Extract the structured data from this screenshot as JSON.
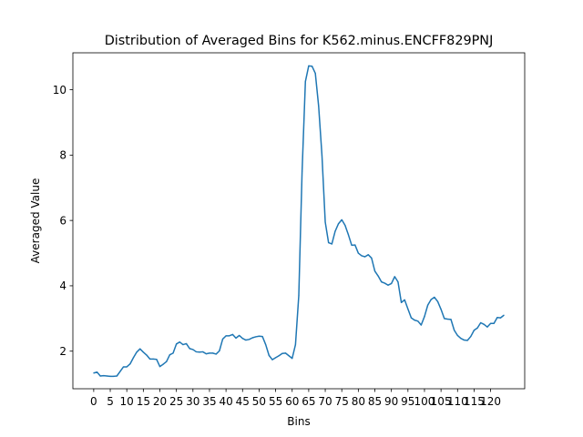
{
  "chart_data": {
    "type": "line",
    "title": "Distribution of Averaged Bins for K562.minus.ENCFF829PNJ",
    "xlabel": "Bins",
    "ylabel": "Averaged Value",
    "xlim": [
      -6.3,
      130.3
    ],
    "ylim": [
      0.85,
      11.13
    ],
    "xticks": [
      0,
      5,
      10,
      15,
      20,
      25,
      30,
      35,
      40,
      45,
      50,
      55,
      60,
      65,
      70,
      75,
      80,
      85,
      90,
      95,
      100,
      105,
      110,
      115,
      120
    ],
    "yticks": [
      2,
      4,
      6,
      8,
      10
    ],
    "grid": false,
    "legend": "none",
    "series": [
      {
        "color": "#1f77b4",
        "x": [
          0,
          1,
          2,
          3,
          4,
          5,
          6,
          7,
          8,
          9,
          10,
          11,
          12,
          13,
          14,
          15,
          16,
          17,
          18,
          19,
          20,
          21,
          22,
          23,
          24,
          25,
          26,
          27,
          28,
          29,
          30,
          31,
          32,
          33,
          34,
          35,
          36,
          37,
          38,
          39,
          40,
          41,
          42,
          43,
          44,
          45,
          46,
          47,
          48,
          49,
          50,
          51,
          52,
          53,
          54,
          55,
          56,
          57,
          58,
          59,
          60,
          61,
          62,
          63,
          64,
          65,
          66,
          67,
          68,
          69,
          70,
          71,
          72,
          73,
          74,
          75,
          76,
          77,
          78,
          79,
          80,
          81,
          82,
          83,
          84,
          85,
          86,
          87,
          88,
          89,
          90,
          91,
          92,
          93,
          94,
          95,
          96,
          97,
          98,
          99,
          100,
          101,
          102,
          103,
          104,
          105,
          106,
          107,
          108,
          109,
          110,
          111,
          112,
          113,
          114,
          115,
          116,
          117,
          118,
          119,
          120,
          121,
          122,
          123,
          124
        ],
        "values": [
          1.33,
          1.36,
          1.24,
          1.25,
          1.24,
          1.23,
          1.23,
          1.24,
          1.38,
          1.52,
          1.52,
          1.61,
          1.8,
          1.97,
          2.07,
          1.97,
          1.88,
          1.76,
          1.76,
          1.75,
          1.53,
          1.6,
          1.68,
          1.89,
          1.94,
          2.22,
          2.28,
          2.2,
          2.23,
          2.08,
          2.05,
          1.98,
          1.97,
          1.98,
          1.92,
          1.94,
          1.94,
          1.91,
          2.01,
          2.37,
          2.47,
          2.47,
          2.51,
          2.4,
          2.48,
          2.39,
          2.34,
          2.36,
          2.41,
          2.44,
          2.46,
          2.45,
          2.2,
          1.87,
          1.74,
          1.8,
          1.86,
          1.93,
          1.94,
          1.86,
          1.78,
          2.2,
          3.7,
          7.5,
          10.25,
          10.73,
          10.72,
          10.5,
          9.5,
          8.0,
          5.95,
          5.32,
          5.28,
          5.67,
          5.9,
          6.02,
          5.85,
          5.56,
          5.24,
          5.25,
          5.0,
          4.92,
          4.89,
          4.95,
          4.85,
          4.45,
          4.3,
          4.12,
          4.08,
          4.02,
          4.07,
          4.28,
          4.12,
          3.49,
          3.57,
          3.29,
          3.02,
          2.95,
          2.92,
          2.8,
          3.06,
          3.41,
          3.58,
          3.65,
          3.52,
          3.28,
          3.0,
          2.98,
          2.97,
          2.64,
          2.48,
          2.39,
          2.34,
          2.33,
          2.45,
          2.64,
          2.71,
          2.87,
          2.82,
          2.74,
          2.85,
          2.85,
          3.03,
          3.02,
          3.1
        ]
      }
    ]
  }
}
